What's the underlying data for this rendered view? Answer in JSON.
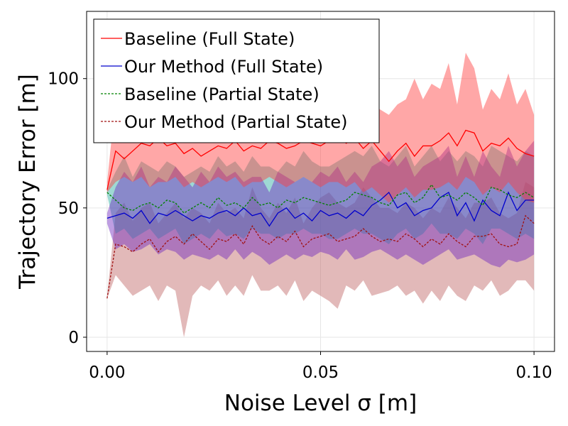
{
  "chart_data": {
    "type": "line",
    "xlabel": "Noise Level σ [m]",
    "ylabel": "Trajectory Error [m]",
    "xlim": [
      -0.0048,
      0.1048
    ],
    "ylim": [
      -5.5,
      126
    ],
    "x_ticks": [
      0.0,
      0.05,
      0.1
    ],
    "x_tick_labels": [
      "0.00",
      "0.05",
      "0.10"
    ],
    "y_ticks": [
      0,
      50,
      100
    ],
    "y_tick_labels": [
      "0",
      "50",
      "100"
    ],
    "grid": true,
    "legend_position": "top-left",
    "x": [
      0.0,
      0.002,
      0.004,
      0.006,
      0.008,
      0.01,
      0.012,
      0.014,
      0.016,
      0.018,
      0.02,
      0.022,
      0.024,
      0.026,
      0.028,
      0.03,
      0.032,
      0.034,
      0.036,
      0.038,
      0.04,
      0.042,
      0.044,
      0.046,
      0.048,
      0.05,
      0.052,
      0.054,
      0.056,
      0.058,
      0.06,
      0.062,
      0.064,
      0.066,
      0.068,
      0.07,
      0.072,
      0.074,
      0.076,
      0.078,
      0.08,
      0.082,
      0.084,
      0.086,
      0.088,
      0.09,
      0.092,
      0.094,
      0.096,
      0.098,
      0.1
    ],
    "series": [
      {
        "name": "Baseline (Full State)",
        "color": "#ff0000",
        "dash": "solid",
        "fill": "rgba(255,60,60,0.45)",
        "values": [
          57,
          72,
          69,
          72,
          75,
          74,
          77,
          74,
          75,
          71,
          73,
          70,
          72,
          74,
          73,
          76,
          72,
          74,
          73,
          76,
          75,
          73,
          74,
          76,
          75,
          74,
          76,
          78,
          75,
          77,
          73,
          76,
          72,
          68,
          72,
          75,
          70,
          74,
          74,
          76,
          79,
          74,
          80,
          79,
          72,
          75,
          74,
          77,
          73,
          71,
          70
        ],
        "lower": [
          56,
          60,
          62,
          60,
          62,
          58,
          60,
          60,
          62,
          58,
          60,
          58,
          60,
          62,
          60,
          62,
          58,
          60,
          60,
          62,
          60,
          58,
          60,
          62,
          60,
          58,
          60,
          60,
          58,
          60,
          56,
          58,
          55,
          52,
          55,
          58,
          54,
          57,
          57,
          58,
          60,
          57,
          62,
          60,
          55,
          58,
          56,
          60,
          56,
          53,
          52
        ],
        "upper": [
          60,
          92,
          86,
          95,
          98,
          92,
          96,
          90,
          94,
          88,
          93,
          86,
          89,
          96,
          90,
          96,
          86,
          92,
          88,
          98,
          92,
          90,
          94,
          92,
          90,
          88,
          90,
          104,
          88,
          92,
          86,
          90,
          88,
          86,
          90,
          92,
          100,
          92,
          98,
          96,
          106,
          90,
          110,
          104,
          88,
          96,
          92,
          102,
          90,
          96,
          86
        ]
      },
      {
        "name": "Our Method (Full State)",
        "color": "#0000cc",
        "dash": "solid",
        "fill": "rgba(110,40,190,0.45)",
        "values": [
          46,
          47,
          48,
          46,
          49,
          44,
          48,
          47,
          49,
          47,
          45,
          47,
          46,
          48,
          49,
          47,
          50,
          47,
          48,
          43,
          48,
          50,
          46,
          48,
          45,
          49,
          47,
          48,
          46,
          49,
          47,
          51,
          53,
          56,
          50,
          52,
          47,
          49,
          50,
          54,
          56,
          47,
          52,
          45,
          53,
          49,
          47,
          56,
          49,
          53,
          53
        ],
        "lower": [
          44,
          34,
          36,
          33,
          34,
          36,
          32,
          34,
          33,
          30,
          32,
          31,
          30,
          32,
          30,
          34,
          30,
          33,
          31,
          28,
          30,
          32,
          30,
          32,
          31,
          33,
          32,
          30,
          34,
          30,
          31,
          33,
          34,
          32,
          30,
          32,
          30,
          28,
          30,
          32,
          34,
          30,
          31,
          32,
          30,
          28,
          27,
          30,
          29,
          30,
          32
        ],
        "upper": [
          48,
          58,
          64,
          60,
          66,
          58,
          62,
          60,
          66,
          62,
          58,
          64,
          60,
          66,
          62,
          64,
          60,
          62,
          62,
          56,
          64,
          62,
          60,
          62,
          60,
          64,
          62,
          66,
          60,
          64,
          60,
          66,
          68,
          72,
          66,
          70,
          62,
          66,
          68,
          70,
          74,
          62,
          70,
          62,
          72,
          66,
          62,
          74,
          66,
          72,
          76
        ]
      },
      {
        "name": "Baseline (Partial State)",
        "color": "#008000",
        "dash": "dashed",
        "fill": "rgba(40,170,160,0.45)",
        "values": [
          56,
          53,
          50,
          49,
          51,
          52,
          50,
          53,
          52,
          48,
          50,
          52,
          50,
          54,
          51,
          52,
          50,
          54,
          51,
          52,
          50,
          53,
          52,
          54,
          53,
          52,
          51,
          52,
          53,
          56,
          55,
          54,
          52,
          51,
          55,
          56,
          52,
          54,
          59,
          54,
          55,
          53,
          56,
          54,
          51,
          58,
          57,
          55,
          54,
          56,
          54
        ],
        "lower": [
          55,
          40,
          42,
          38,
          40,
          42,
          38,
          40,
          42,
          36,
          38,
          40,
          38,
          42,
          39,
          40,
          38,
          42,
          40,
          40,
          38,
          40,
          40,
          42,
          40,
          40,
          38,
          38,
          40,
          42,
          40,
          40,
          38,
          36,
          40,
          42,
          38,
          40,
          44,
          40,
          40,
          38,
          42,
          40,
          36,
          42,
          42,
          40,
          38,
          40,
          38
        ],
        "upper": [
          57,
          64,
          70,
          62,
          68,
          66,
          64,
          68,
          66,
          62,
          64,
          66,
          64,
          70,
          66,
          68,
          64,
          70,
          66,
          66,
          64,
          68,
          66,
          72,
          68,
          66,
          66,
          68,
          70,
          72,
          70,
          74,
          68,
          66,
          70,
          74,
          66,
          70,
          74,
          68,
          72,
          68,
          72,
          70,
          66,
          74,
          72,
          70,
          68,
          72,
          70
        ]
      },
      {
        "name": "Our Method (Partial State)",
        "color": "#a01010",
        "dash": "dashed",
        "fill": "rgba(190,100,100,0.45)",
        "values": [
          15,
          36,
          35,
          33,
          36,
          38,
          33,
          37,
          39,
          36,
          40,
          37,
          34,
          38,
          37,
          40,
          36,
          43,
          38,
          36,
          39,
          37,
          41,
          35,
          38,
          39,
          40,
          37,
          38,
          39,
          42,
          39,
          37,
          38,
          37,
          40,
          38,
          35,
          38,
          36,
          40,
          37,
          35,
          39,
          39,
          40,
          36,
          35,
          36,
          47,
          44
        ],
        "lower": [
          15,
          24,
          20,
          16,
          18,
          20,
          14,
          20,
          18,
          0,
          16,
          20,
          18,
          22,
          16,
          20,
          16,
          24,
          18,
          18,
          20,
          16,
          22,
          14,
          18,
          16,
          14,
          11,
          20,
          18,
          22,
          16,
          17,
          18,
          20,
          16,
          18,
          13,
          18,
          14,
          20,
          16,
          14,
          20,
          18,
          22,
          16,
          18,
          22,
          22,
          18
        ],
        "upper": [
          16,
          48,
          52,
          45,
          50,
          52,
          44,
          48,
          52,
          46,
          50,
          48,
          44,
          52,
          48,
          50,
          46,
          58,
          50,
          46,
          52,
          48,
          54,
          44,
          50,
          54,
          56,
          52,
          50,
          52,
          58,
          54,
          50,
          50,
          48,
          52,
          50,
          46,
          50,
          48,
          54,
          50,
          46,
          52,
          52,
          54,
          48,
          46,
          48,
          60,
          58
        ]
      }
    ]
  }
}
